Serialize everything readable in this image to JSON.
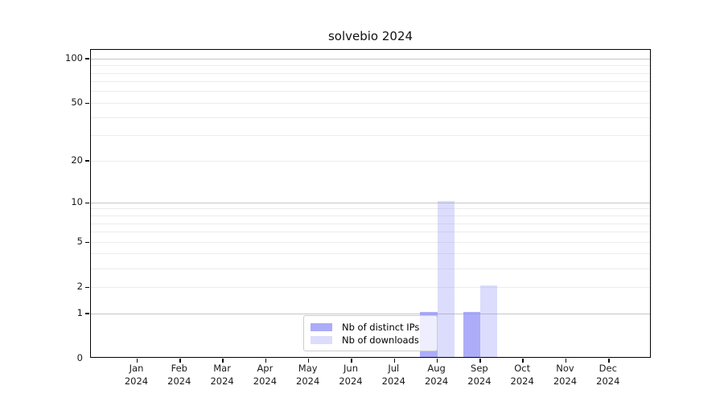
{
  "title": "solvebio 2024",
  "chart_data": {
    "type": "bar",
    "yscale": "symlog (position proportional to log(1+v))",
    "title": "solvebio 2024",
    "xlabel": "",
    "ylabel": "",
    "categories": [
      "Jan",
      "Feb",
      "Mar",
      "Apr",
      "May",
      "Jun",
      "Jul",
      "Aug",
      "Sep",
      "Oct",
      "Nov",
      "Dec"
    ],
    "category_year": "2024",
    "series": [
      {
        "name": "Nb of distinct IPs",
        "color": "rgba(140,140,245,0.72)",
        "values": [
          0,
          0,
          0,
          0,
          0,
          0,
          0,
          1,
          1,
          0,
          0,
          0
        ]
      },
      {
        "name": "Nb of downloads",
        "color": "rgba(140,140,245,0.30)",
        "values": [
          0,
          0,
          0,
          0,
          0,
          0,
          0,
          10,
          2,
          0,
          0,
          0
        ]
      }
    ],
    "yticks": [
      0,
      1,
      2,
      5,
      10,
      20,
      50,
      100
    ],
    "ylim": [
      0,
      100
    ],
    "axis_top_value": 115,
    "grid": "horizontal; minor lines at 2-9 and 20-90, major lines at 1, 10, 100",
    "legend_position": "bottom-center"
  },
  "colors": {
    "major_grid": "#c6c6c6",
    "minor_grid": "#ececec",
    "spine": "#000000",
    "bar_dark": "#aaaaf2",
    "bar_light": "#dcdcf8"
  }
}
